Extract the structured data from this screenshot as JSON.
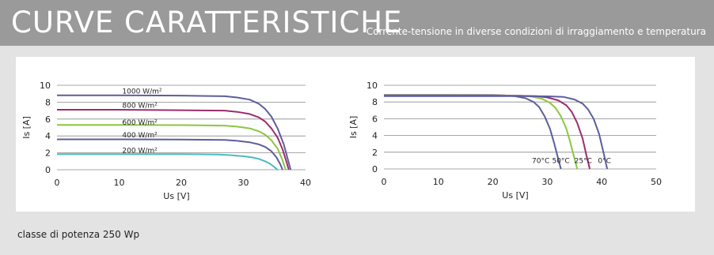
{
  "header": {
    "title": "CURVE CARATTERISTICHE",
    "subtitle": "Corrente-tensione in diverse condizioni di irraggiamento e temperatura"
  },
  "footer": {
    "text": "classe di potenza 250 Wp"
  },
  "chart_data": [
    {
      "type": "line",
      "title": "",
      "xlabel": "Us [V]",
      "ylabel": "Is [A]",
      "xlim": [
        0,
        40
      ],
      "ylim": [
        0,
        10
      ],
      "xticks": [
        0,
        10,
        20,
        30,
        40
      ],
      "yticks": [
        0,
        2,
        4,
        6,
        8,
        10
      ],
      "grid": "horizontal",
      "legend": "inline-labels",
      "series": [
        {
          "name": "1000 W/m²",
          "color": "#5d5d9e",
          "label_at": [
            10.5,
            9.3
          ],
          "x": [
            0,
            10,
            20,
            27,
            29,
            31,
            32.5,
            33.5,
            34.5,
            35.5,
            36.5,
            37.2,
            37.6
          ],
          "y": [
            8.8,
            8.8,
            8.78,
            8.7,
            8.55,
            8.3,
            7.8,
            7.2,
            6.3,
            4.9,
            3.0,
            1.1,
            0
          ]
        },
        {
          "name": "800 W/m²",
          "color": "#9b2d6b",
          "label_at": [
            10.5,
            7.6
          ],
          "x": [
            0,
            10,
            20,
            27,
            29,
            31,
            32.5,
            33.5,
            34.5,
            35.5,
            36.3,
            36.9,
            37.3
          ],
          "y": [
            7.1,
            7.1,
            7.05,
            7.0,
            6.85,
            6.6,
            6.2,
            5.7,
            4.9,
            3.8,
            2.4,
            1.0,
            0
          ]
        },
        {
          "name": "600 W/m²",
          "color": "#8cc63f",
          "label_at": [
            10.5,
            5.6
          ],
          "x": [
            0,
            10,
            20,
            27,
            29,
            31,
            32.5,
            33.5,
            34.5,
            35.5,
            36.2,
            36.8
          ],
          "y": [
            5.3,
            5.3,
            5.28,
            5.22,
            5.1,
            4.9,
            4.55,
            4.15,
            3.5,
            2.5,
            1.3,
            0
          ]
        },
        {
          "name": "400 W/m²",
          "color": "#5d5d9e",
          "label_at": [
            10.5,
            4.1
          ],
          "x": [
            0,
            10,
            20,
            27,
            29,
            31,
            32.5,
            33.5,
            34.5,
            35.3,
            35.9,
            36.3
          ],
          "y": [
            3.6,
            3.6,
            3.58,
            3.52,
            3.42,
            3.25,
            3.0,
            2.7,
            2.2,
            1.5,
            0.7,
            0
          ]
        },
        {
          "name": "200 W/m²",
          "color": "#4bbbc0",
          "label_at": [
            10.5,
            2.3
          ],
          "x": [
            0,
            10,
            20,
            26,
            28,
            30,
            31.5,
            32.5,
            33.5,
            34.3,
            35.0,
            35.5
          ],
          "y": [
            1.85,
            1.85,
            1.84,
            1.8,
            1.72,
            1.6,
            1.45,
            1.28,
            1.0,
            0.7,
            0.3,
            0
          ]
        }
      ]
    },
    {
      "type": "line",
      "title": "",
      "xlabel": "Us [V]",
      "ylabel": "Is [A]",
      "xlim": [
        0,
        50
      ],
      "ylim": [
        0,
        10
      ],
      "xticks": [
        0,
        10,
        20,
        30,
        40,
        50
      ],
      "yticks": [
        0,
        2,
        4,
        6,
        8,
        10
      ],
      "grid": "horizontal",
      "legend": "inline-labels",
      "series": [
        {
          "name": "70°C",
          "color": "#5d5d9e",
          "label_at": [
            28.8,
            1.0
          ],
          "x": [
            0,
            10,
            20,
            22,
            24,
            26,
            27.5,
            28.5,
            29.5,
            30.5,
            31.3,
            32.0,
            32.5
          ],
          "y": [
            8.85,
            8.85,
            8.83,
            8.8,
            8.7,
            8.45,
            8.0,
            7.4,
            6.3,
            4.8,
            3.0,
            1.2,
            0
          ]
        },
        {
          "name": "50°C",
          "color": "#8cc63f",
          "label_at": [
            32.5,
            1.0
          ],
          "x": [
            0,
            10,
            20,
            25,
            27,
            29,
            30.5,
            31.5,
            32.5,
            33.5,
            34.3,
            35.0,
            35.5
          ],
          "y": [
            8.8,
            8.8,
            8.78,
            8.75,
            8.65,
            8.4,
            7.9,
            7.3,
            6.3,
            4.8,
            3.0,
            1.2,
            0
          ]
        },
        {
          "name": "25°C",
          "color": "#9b2d6b",
          "label_at": [
            36.6,
            1.0
          ],
          "x": [
            0,
            10,
            20,
            25,
            28,
            30,
            32,
            33.5,
            34.5,
            35.5,
            36.5,
            37.2,
            37.8
          ],
          "y": [
            8.75,
            8.75,
            8.75,
            8.74,
            8.7,
            8.55,
            8.2,
            7.6,
            6.8,
            5.5,
            3.6,
            1.6,
            0
          ]
        },
        {
          "name": "0°C",
          "color": "#5d5d9e",
          "label_at": [
            40.5,
            1.0
          ],
          "x": [
            0,
            10,
            20,
            25,
            30,
            33,
            35,
            36.5,
            37.5,
            38.5,
            39.5,
            40.3,
            41.0
          ],
          "y": [
            8.7,
            8.7,
            8.7,
            8.7,
            8.68,
            8.6,
            8.3,
            7.8,
            7.1,
            6.0,
            4.2,
            2.0,
            0
          ]
        }
      ]
    }
  ]
}
